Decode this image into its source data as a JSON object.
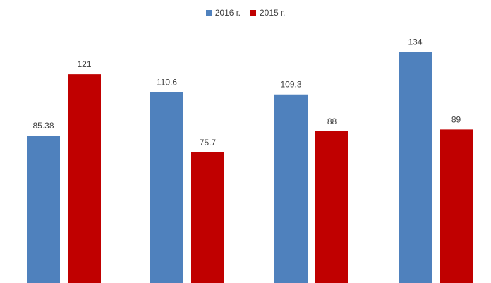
{
  "chart_data": {
    "type": "bar",
    "categories": [
      "",
      "",
      "",
      ""
    ],
    "series": [
      {
        "name": "2016 г.",
        "color": "#4f81bd",
        "values": [
          85.38,
          110.6,
          109.3,
          134
        ]
      },
      {
        "name": "2015 г.",
        "color": "#c00000",
        "values": [
          121,
          75.7,
          88,
          89
        ]
      }
    ],
    "data_labels": [
      [
        "85.38",
        "110.6",
        "109.3",
        "134"
      ],
      [
        "121",
        "75.7",
        "88",
        "89"
      ]
    ],
    "title": "",
    "xlabel": "",
    "ylabel": "",
    "ylim": [
      0,
      164
    ],
    "grid": false,
    "legend_position": "top-center"
  }
}
